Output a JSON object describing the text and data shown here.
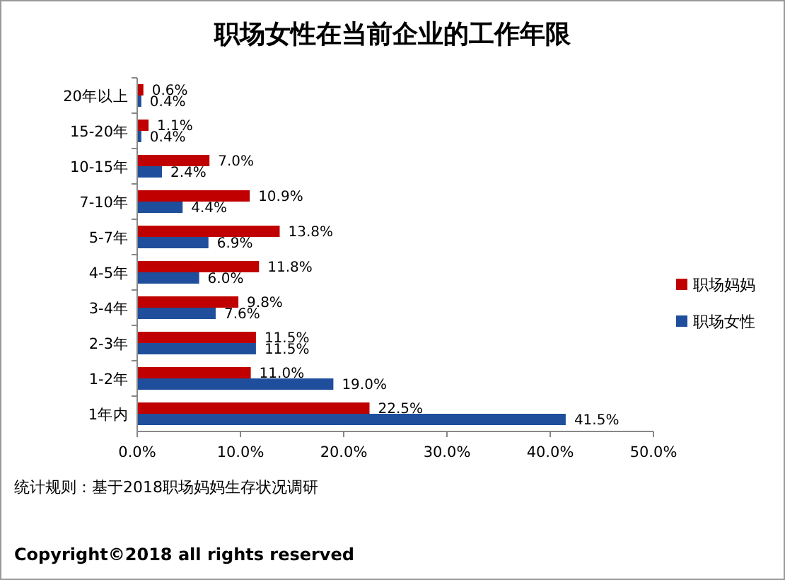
{
  "chart_data": {
    "type": "bar",
    "orientation": "horizontal",
    "title": "职场女性在当前企业的工作年限",
    "categories": [
      "20年以上",
      "15-20年",
      "10-15年",
      "7-10年",
      "5-7年",
      "4-5年",
      "3-4年",
      "2-3年",
      "1-2年",
      "1年内"
    ],
    "series": [
      {
        "name": "职场妈妈",
        "color": "#c00000",
        "values": [
          0.6,
          1.1,
          7.0,
          10.9,
          13.8,
          11.8,
          9.8,
          11.5,
          11.0,
          22.5
        ],
        "value_labels": [
          "0.6%",
          "1.1%",
          "7.0%",
          "10.9%",
          "13.8%",
          "11.8%",
          "9.8%",
          "11.5%",
          "11.0%",
          "22.5%"
        ]
      },
      {
        "name": "职场女性",
        "color": "#1f4e9c",
        "values": [
          0.4,
          0.4,
          2.4,
          4.4,
          6.9,
          6.0,
          7.6,
          11.5,
          19.0,
          41.5
        ],
        "value_labels": [
          "0.4%",
          "0.4%",
          "2.4%",
          "4.4%",
          "6.9%",
          "6.0%",
          "7.6%",
          "11.5%",
          "19.0%",
          "41.5%"
        ]
      }
    ],
    "xlim": [
      0,
      50
    ],
    "xticks": [
      {
        "value": 0,
        "label": "0.0%"
      },
      {
        "value": 10,
        "label": "10.0%"
      },
      {
        "value": 20,
        "label": "20.0%"
      },
      {
        "value": 30,
        "label": "30.0%"
      },
      {
        "value": 40,
        "label": "40.0%"
      },
      {
        "value": 50,
        "label": "50.0%"
      }
    ],
    "legend": "right",
    "annotations": [
      "统计规则：基于2018职场妈妈生存状况调研",
      "Copyright©2018 all rights reserved"
    ]
  }
}
